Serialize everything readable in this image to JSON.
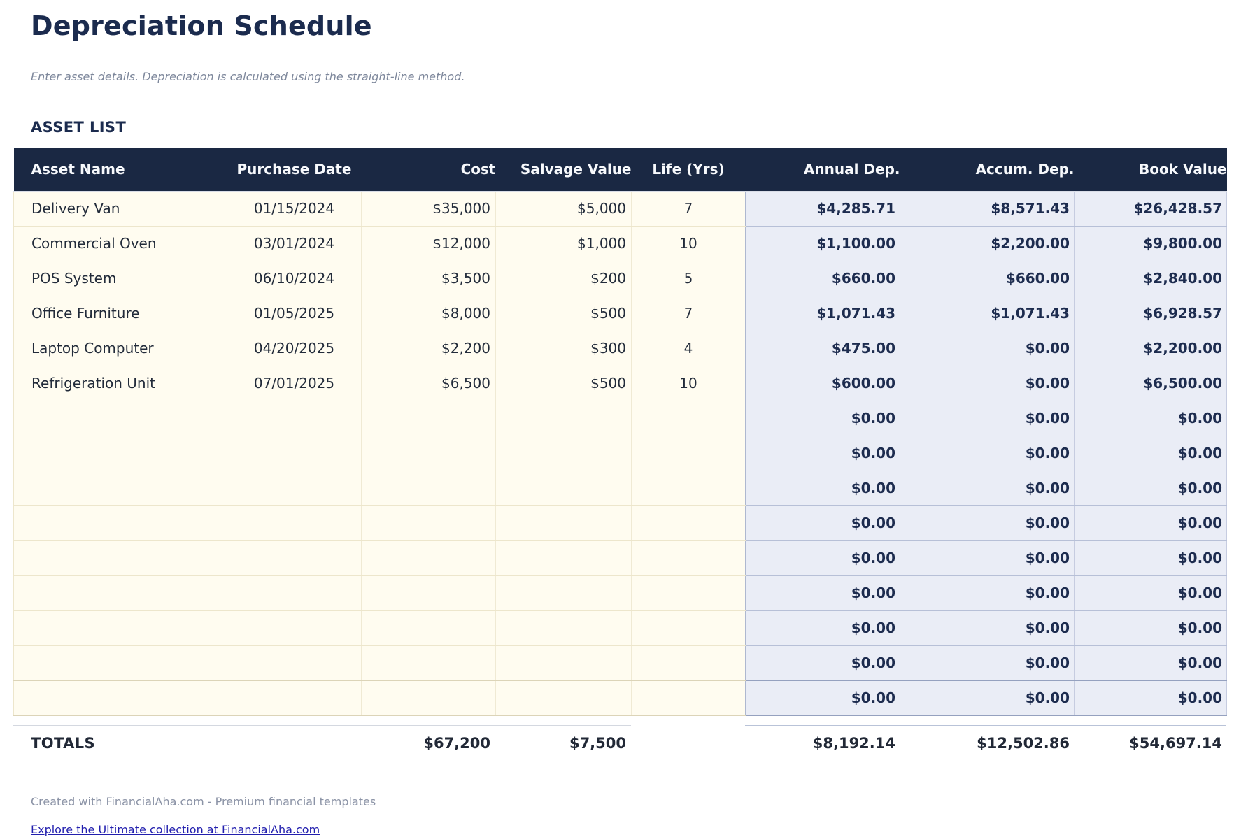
{
  "header": {
    "title": "Depreciation Schedule",
    "subtitle": "Enter asset details. Depreciation is calculated using the straight-line method.",
    "section_heading": "ASSET LIST"
  },
  "table": {
    "columns": [
      "Asset Name",
      "Purchase Date",
      "Cost",
      "Salvage Value",
      "Life (Yrs)",
      "Annual Dep.",
      "Accum. Dep.",
      "Book Value"
    ],
    "rows": [
      [
        "Delivery Van",
        "01/15/2024",
        "$35,000",
        "$5,000",
        "7",
        "$4,285.71",
        "$8,571.43",
        "$26,428.57"
      ],
      [
        "Commercial Oven",
        "03/01/2024",
        "$12,000",
        "$1,000",
        "10",
        "$1,100.00",
        "$2,200.00",
        "$9,800.00"
      ],
      [
        "POS System",
        "06/10/2024",
        "$3,500",
        "$200",
        "5",
        "$660.00",
        "$660.00",
        "$2,840.00"
      ],
      [
        "Office Furniture",
        "01/05/2025",
        "$8,000",
        "$500",
        "7",
        "$1,071.43",
        "$1,071.43",
        "$6,928.57"
      ],
      [
        "Laptop Computer",
        "04/20/2025",
        "$2,200",
        "$300",
        "4",
        "$475.00",
        "$0.00",
        "$2,200.00"
      ],
      [
        "Refrigeration Unit",
        "07/01/2025",
        "$6,500",
        "$500",
        "10",
        "$600.00",
        "$0.00",
        "$6,500.00"
      ],
      [
        "",
        "",
        "",
        "",
        "",
        "$0.00",
        "$0.00",
        "$0.00"
      ],
      [
        "",
        "",
        "",
        "",
        "",
        "$0.00",
        "$0.00",
        "$0.00"
      ],
      [
        "",
        "",
        "",
        "",
        "",
        "$0.00",
        "$0.00",
        "$0.00"
      ],
      [
        "",
        "",
        "",
        "",
        "",
        "$0.00",
        "$0.00",
        "$0.00"
      ],
      [
        "",
        "",
        "",
        "",
        "",
        "$0.00",
        "$0.00",
        "$0.00"
      ],
      [
        "",
        "",
        "",
        "",
        "",
        "$0.00",
        "$0.00",
        "$0.00"
      ],
      [
        "",
        "",
        "",
        "",
        "",
        "$0.00",
        "$0.00",
        "$0.00"
      ],
      [
        "",
        "",
        "",
        "",
        "",
        "$0.00",
        "$0.00",
        "$0.00"
      ],
      [
        "",
        "",
        "",
        "",
        "",
        "$0.00",
        "$0.00",
        "$0.00"
      ]
    ],
    "totals": {
      "label": "TOTALS",
      "cost": "$67,200",
      "salvage_value": "$7,500",
      "annual_dep": "$8,192.14",
      "accum_dep": "$12,502.86",
      "book_value": "$54,697.14"
    }
  },
  "footer": {
    "credit": "Created with FinancialAha.com - Premium financial templates",
    "link_label": "Explore the Ultimate collection at FinancialAha.com"
  },
  "colors": {
    "header_bg": "#1a2843",
    "input_cell_bg": "#fffcf0",
    "calc_cell_bg": "#eaedf6",
    "accent_navy": "#1b2b4e",
    "link": "#221fae"
  }
}
